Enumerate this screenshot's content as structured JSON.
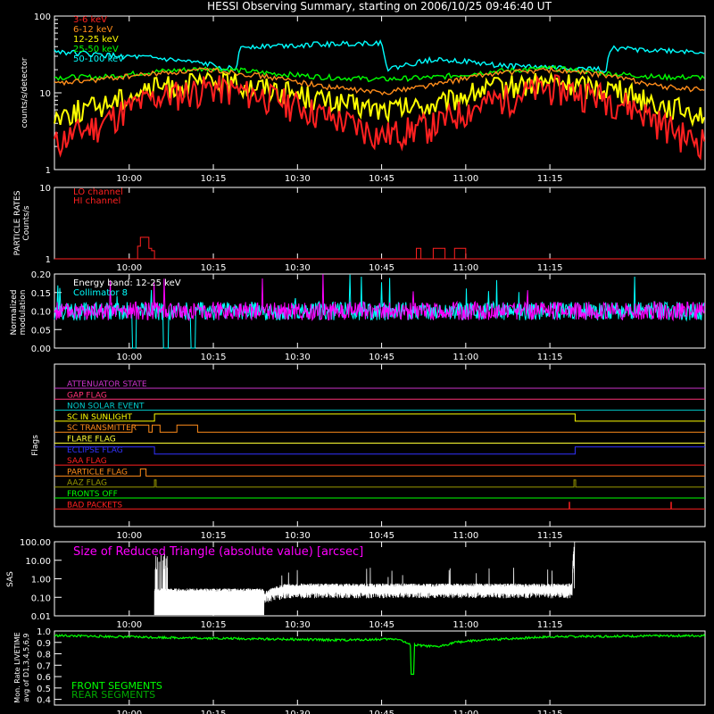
{
  "title": "HESSI Observing Summary, starting on 2006/10/25 09:46:40 UT",
  "time_ticks": [
    "10:00",
    "10:15",
    "10:30",
    "10:45",
    "11:00",
    "11:15"
  ],
  "colors": {
    "band_3_6": "#ff2020",
    "band_6_12": "#ff8c1a",
    "band_12_25": "#ffff00",
    "band_25_50": "#00ff00",
    "band_50_100": "#00ffff",
    "lo": "#ff2020",
    "hi": "#ff2020",
    "energy": "#ffffff",
    "collimator": "#00ffff",
    "mod_band": "#ff00ff",
    "livetime_front": "#00ff00",
    "livetime_rear": "#00aa00"
  },
  "chart_data": [
    {
      "type": "line",
      "panel": "count_rates",
      "ylabel": "counts/s/detector",
      "ylim": [
        1,
        100
      ],
      "log_scale": true,
      "yticks": [
        "1",
        "10",
        "100"
      ],
      "x_range_min": [
        -13.33,
        102.67
      ],
      "series": [
        {
          "name": "3-6 keV",
          "color": "#ff2020",
          "x": [
            -13.33,
            -5,
            5,
            15,
            25,
            35,
            45,
            55,
            65,
            75,
            85,
            95,
            100
          ],
          "y": [
            2.2,
            4,
            9,
            12,
            9,
            5,
            2.8,
            4,
            8,
            12,
            9,
            4,
            2.5
          ]
        },
        {
          "name": "6-12 keV",
          "color": "#ff8c1a",
          "x": [
            -13.33,
            -5,
            5,
            15,
            25,
            35,
            45,
            55,
            65,
            75,
            85,
            95,
            102
          ],
          "y": [
            13,
            15,
            18,
            20,
            16,
            12,
            10,
            13,
            18,
            20,
            17,
            12,
            11
          ]
        },
        {
          "name": "12-25 keV",
          "color": "#ffff00",
          "x": [
            -13.33,
            -5,
            5,
            15,
            25,
            35,
            45,
            55,
            65,
            75,
            85,
            95,
            102
          ],
          "y": [
            5,
            7,
            12,
            14,
            12,
            8,
            6,
            7,
            12,
            14,
            12,
            7,
            5.5
          ]
        },
        {
          "name": "25-50 keV",
          "color": "#00ff00",
          "x": [
            -13.33,
            -5,
            5,
            15,
            25,
            35,
            45,
            55,
            65,
            75,
            85,
            95,
            102
          ],
          "y": [
            16,
            16,
            19,
            21,
            18,
            16,
            15,
            16,
            19,
            21,
            18,
            16,
            16
          ]
        },
        {
          "name": "50-100 keV",
          "color": "#00ffff",
          "x": [
            -13.33,
            -5,
            5,
            15,
            19,
            20,
            45,
            46,
            55,
            65,
            85,
            86,
            102
          ],
          "y": [
            35,
            31,
            28,
            23,
            20,
            40,
            45,
            20,
            28,
            23,
            20,
            38,
            34
          ]
        }
      ]
    },
    {
      "type": "line",
      "panel": "particle_rates",
      "ylabel": "PARTICLE RATES Counts/s",
      "ylim": [
        1,
        10
      ],
      "log_scale": true,
      "yticks": [
        "1",
        "10"
      ],
      "series": [
        {
          "name": "LO channel",
          "color": "#ff2020",
          "x": [
            -13.33,
            1,
            1.5,
            2,
            3.5,
            4,
            4.5,
            102.67
          ],
          "y": [
            1,
            1,
            1.5,
            2,
            1.4,
            1.3,
            1,
            1
          ]
        },
        {
          "name": "HI channel",
          "color": "#ff2020",
          "x": [
            -13.33,
            51,
            51.2,
            51.8,
            52,
            54,
            54.2,
            56,
            56.3,
            58,
            58.5,
            60,
            61,
            102.67
          ],
          "y": [
            1,
            1,
            1.4,
            1.4,
            1,
            1,
            1.4,
            1.4,
            1,
            1.4,
            1.4,
            1,
            1,
            1
          ]
        }
      ]
    },
    {
      "type": "line",
      "panel": "modulation",
      "ylabel": "Normalized modulation",
      "ylim": [
        0,
        0.2
      ],
      "yticks": [
        "0.00",
        "0.05",
        "0.10",
        "0.15",
        "0.20"
      ],
      "series": [
        {
          "name": "Energy band: 12-25 keV",
          "color": "#ffffff",
          "mean": 0.1
        },
        {
          "name": "Collimator 8",
          "color": "#00ffff",
          "mean": 0.1
        }
      ]
    },
    {
      "type": "line",
      "panel": "flags",
      "ylabel": "Flags",
      "flags": [
        {
          "label": "ATTENUATOR STATE",
          "color": "#cc33cc"
        },
        {
          "label": "GAP FLAG",
          "color": "#ff3377"
        },
        {
          "label": "NON SOLAR EVENT",
          "color": "#00cccc"
        },
        {
          "label": "SC IN SUNLIGHT",
          "color": "#ffff00"
        },
        {
          "label": "SC TRANSMITTER",
          "color": "#ff8c1a"
        },
        {
          "label": "FLARE FLAG",
          "color": "#ffff33"
        },
        {
          "label": "ECLIPSE FLAG",
          "color": "#3333ff"
        },
        {
          "label": "SAA FLAG",
          "color": "#ff2020"
        },
        {
          "label": "PARTICLE FLAG",
          "color": "#ff8c1a"
        },
        {
          "label": "AAZ FLAG",
          "color": "#999900"
        },
        {
          "label": "FRONTS OFF",
          "color": "#00ff00"
        },
        {
          "label": "BAD PACKETS",
          "color": "#ff2020"
        }
      ]
    },
    {
      "type": "line",
      "panel": "sas",
      "ylabel": "SAS",
      "ylim": [
        0.01,
        100
      ],
      "log_scale": true,
      "yticks": [
        "0.01",
        "0.10",
        "1.00",
        "10.00",
        "100.00"
      ],
      "annotation": "Size of Reduced Triangle (absolute value) [arcsec]",
      "series": [
        {
          "name": "",
          "color": "#ffffff",
          "x": [
            4.5,
            5,
            8,
            14,
            18,
            24,
            28,
            40,
            60,
            70,
            79,
            79.2,
            79.5
          ],
          "y": [
            0.02,
            5,
            0.2,
            0.15,
            0.15,
            0.12,
            0.35,
            0.35,
            0.35,
            0.35,
            0.35,
            20,
            100
          ]
        }
      ]
    },
    {
      "type": "line",
      "panel": "livetime",
      "ylabel": "Mon. Rate LIVETIME avg of D1,3,4,5,6,9",
      "ylim": [
        0.35,
        1.0
      ],
      "yticks": [
        "0.4",
        "0.5",
        "0.6",
        "0.7",
        "0.8",
        "0.9",
        "1.0"
      ],
      "series": [
        {
          "name": "FRONT SEGMENTS",
          "color": "#00ff00",
          "x": [
            -13.33,
            10,
            38,
            48,
            50,
            55,
            58,
            63,
            75,
            102.67
          ],
          "y": [
            0.96,
            0.94,
            0.92,
            0.93,
            0.88,
            0.86,
            0.9,
            0.92,
            0.95,
            0.96
          ]
        },
        {
          "name": "REAR SEGMENTS",
          "color": "#00aa00",
          "x": [],
          "y": []
        }
      ]
    }
  ]
}
